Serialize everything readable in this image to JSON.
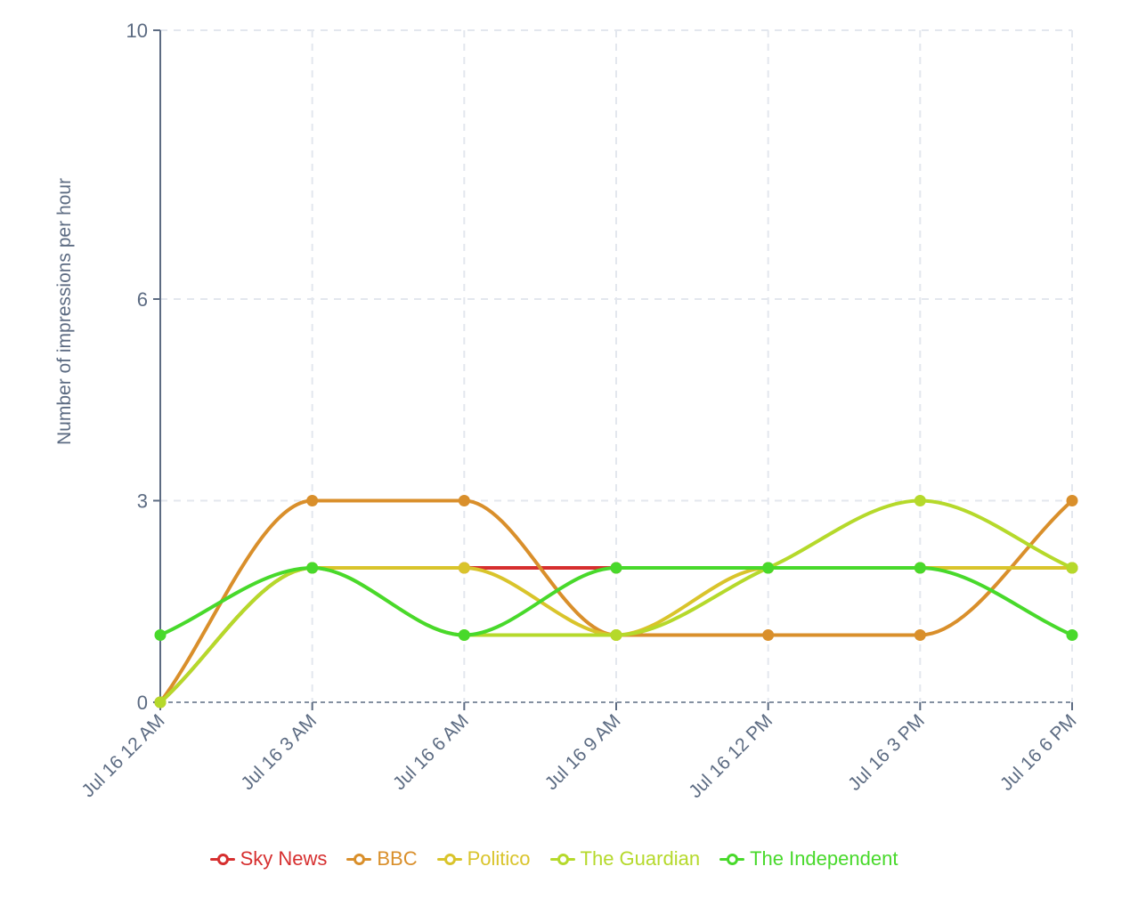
{
  "chart_data": {
    "type": "line",
    "title": "",
    "xlabel": "",
    "ylabel": "Number of impressions per hour",
    "categories": [
      "Jul 16 12 AM",
      "Jul 16 3 AM",
      "Jul 16 6 AM",
      "Jul 16 9 AM",
      "Jul 16 12 PM",
      "Jul 16 3 PM",
      "Jul 16 6 PM"
    ],
    "yticks": [
      0,
      3,
      6,
      10
    ],
    "ylim": [
      0,
      10
    ],
    "grid": true,
    "legend_position": "bottom",
    "series": [
      {
        "name": "Sky News",
        "color": "#d62f2f",
        "values": [
          0,
          2,
          2,
          2,
          2,
          2,
          2
        ]
      },
      {
        "name": "BBC",
        "color": "#d98f2b",
        "values": [
          0,
          3,
          3,
          1,
          1,
          1,
          3
        ]
      },
      {
        "name": "Politico",
        "color": "#d9c42b",
        "values": [
          0,
          2,
          2,
          1,
          2,
          2,
          2
        ]
      },
      {
        "name": "The Guardian",
        "color": "#b5d92b",
        "values": [
          0,
          2,
          1,
          1,
          2,
          3,
          2
        ]
      },
      {
        "name": "The Independent",
        "color": "#48d92b",
        "values": [
          1,
          2,
          1,
          2,
          2,
          2,
          1
        ]
      }
    ]
  },
  "axis_color": "#5c6b82",
  "grid_color": "#e3e7ee"
}
